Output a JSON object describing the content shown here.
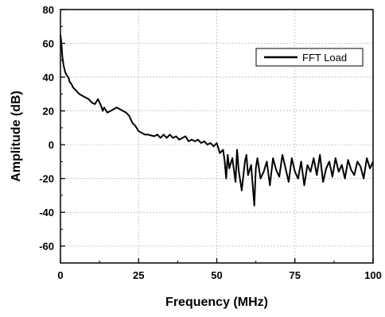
{
  "chart_data": {
    "type": "line",
    "xlabel": "Frequency (MHz)",
    "ylabel": "Amplitude (dB)",
    "xlim": [
      0,
      100
    ],
    "ylim": [
      -70,
      80
    ],
    "x_ticks": [
      0,
      25,
      50,
      75,
      100
    ],
    "y_ticks": [
      -60,
      -40,
      -20,
      0,
      20,
      40,
      60,
      80
    ],
    "x_tick_labels": [
      "0",
      "25",
      "50",
      "75",
      "100"
    ],
    "y_tick_labels": [
      "-60",
      "-40",
      "-20",
      "0",
      "20",
      "40",
      "60",
      "80"
    ],
    "grid": true,
    "legend_position": "top-right",
    "series": [
      {
        "name": "FFT Load",
        "color": "#000000",
        "points": [
          [
            0,
            65
          ],
          [
            0.3,
            60
          ],
          [
            0.6,
            52
          ],
          [
            1,
            47
          ],
          [
            1.5,
            43
          ],
          [
            2,
            41
          ],
          [
            2.5,
            40
          ],
          [
            3,
            37
          ],
          [
            3.5,
            36
          ],
          [
            4,
            34
          ],
          [
            5,
            32
          ],
          [
            6,
            30
          ],
          [
            7,
            29
          ],
          [
            8,
            28
          ],
          [
            9,
            27
          ],
          [
            10,
            25
          ],
          [
            11,
            24
          ],
          [
            12,
            27
          ],
          [
            13,
            23
          ],
          [
            13.5,
            20
          ],
          [
            14,
            22
          ],
          [
            15,
            19
          ],
          [
            16,
            20
          ],
          [
            17,
            21
          ],
          [
            18,
            22
          ],
          [
            19,
            21
          ],
          [
            20,
            20
          ],
          [
            21,
            19
          ],
          [
            22,
            17
          ],
          [
            23,
            13
          ],
          [
            24,
            11
          ],
          [
            25,
            8
          ],
          [
            26,
            7
          ],
          [
            27,
            6
          ],
          [
            28,
            6
          ],
          [
            30,
            5
          ],
          [
            31,
            6
          ],
          [
            32,
            4
          ],
          [
            33,
            6
          ],
          [
            34,
            4
          ],
          [
            35,
            6
          ],
          [
            36,
            4
          ],
          [
            37,
            5
          ],
          [
            38,
            3
          ],
          [
            39,
            4
          ],
          [
            40,
            5
          ],
          [
            41,
            2
          ],
          [
            42,
            3
          ],
          [
            43,
            2
          ],
          [
            44,
            3
          ],
          [
            45,
            1
          ],
          [
            46,
            2
          ],
          [
            47,
            0
          ],
          [
            48,
            1
          ],
          [
            49,
            -1
          ],
          [
            50,
            1
          ],
          [
            51,
            -5
          ],
          [
            52,
            -3
          ],
          [
            52.5,
            -9
          ],
          [
            53,
            -20
          ],
          [
            53.5,
            -6
          ],
          [
            54,
            -14
          ],
          [
            55,
            -8
          ],
          [
            56,
            -22
          ],
          [
            56.5,
            -3
          ],
          [
            57,
            -15
          ],
          [
            58,
            -27
          ],
          [
            59,
            -10
          ],
          [
            59.5,
            -6
          ],
          [
            60,
            -18
          ],
          [
            61,
            -12
          ],
          [
            62,
            -36
          ],
          [
            62.5,
            -14
          ],
          [
            63,
            -8
          ],
          [
            64,
            -20
          ],
          [
            65,
            -16
          ],
          [
            66,
            -10
          ],
          [
            67,
            -24
          ],
          [
            68,
            -8
          ],
          [
            69,
            -15
          ],
          [
            70,
            -19
          ],
          [
            71,
            -6
          ],
          [
            72,
            -14
          ],
          [
            73,
            -22
          ],
          [
            74,
            -8
          ],
          [
            75,
            -16
          ],
          [
            76,
            -20
          ],
          [
            77,
            -10
          ],
          [
            78,
            -24
          ],
          [
            79,
            -12
          ],
          [
            80,
            -16
          ],
          [
            81,
            -8
          ],
          [
            82,
            -18
          ],
          [
            83,
            -6
          ],
          [
            84,
            -22
          ],
          [
            85,
            -14
          ],
          [
            86,
            -10
          ],
          [
            87,
            -19
          ],
          [
            88,
            -8
          ],
          [
            89,
            -16
          ],
          [
            90,
            -12
          ],
          [
            91,
            -20
          ],
          [
            92,
            -9
          ],
          [
            93,
            -15
          ],
          [
            94,
            -18
          ],
          [
            95,
            -10
          ],
          [
            96,
            -13
          ],
          [
            97,
            -20
          ],
          [
            98,
            -8
          ],
          [
            99,
            -14
          ],
          [
            100,
            -10
          ]
        ]
      }
    ]
  }
}
